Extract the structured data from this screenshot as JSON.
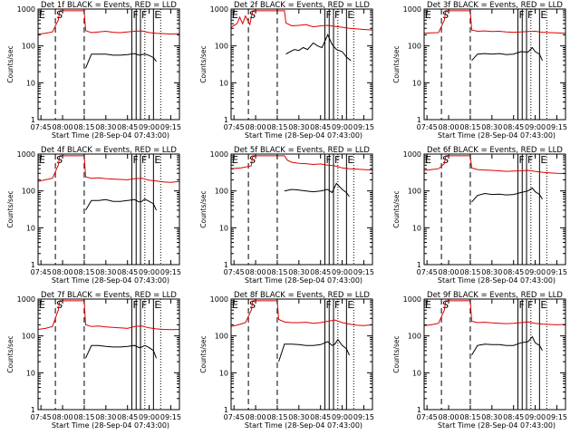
{
  "chart_data": [
    {
      "type": "line",
      "title": "Det 1f BLACK = Events, RED = LLD",
      "xlabel": "Start Time (28-Sep-04 07:43:00)",
      "ylabel": "Counts/sec",
      "yscale": "log",
      "ylim": [
        1,
        1000
      ],
      "xlim": [
        "07:43",
        "09:21"
      ],
      "series": [
        {
          "color": "#000000",
          "t": [
            "08:16",
            "08:20",
            "08:25",
            "08:30",
            "08:35",
            "08:40",
            "08:45",
            "08:50",
            "08:53",
            "08:55",
            "08:57",
            "09:00",
            "09:03",
            "09:05"
          ],
          "v": [
            25,
            60,
            60,
            60,
            56,
            56,
            58,
            62,
            56,
            58,
            60,
            55,
            48,
            38
          ]
        },
        {
          "color": "#dd0000",
          "t": [
            "07:43",
            "07:48",
            "07:53",
            "07:57",
            "07:58",
            "08:15",
            "08:16",
            "08:20",
            "08:25",
            "08:30",
            "08:35",
            "08:40",
            "08:45",
            "08:50",
            "08:55",
            "09:00",
            "09:05",
            "09:10",
            "09:15",
            "09:21"
          ],
          "v": [
            210,
            220,
            240,
            500,
            900,
            900,
            260,
            230,
            240,
            250,
            235,
            230,
            240,
            250,
            255,
            230,
            220,
            215,
            210,
            215
          ]
        }
      ]
    },
    {
      "type": "line",
      "title": "Det 2f BLACK = Events, RED = LLD",
      "xlabel": "Start Time (28-Sep-04 07:43:00)",
      "ylabel": "Counts/sec",
      "yscale": "log",
      "ylim": [
        1,
        1000
      ],
      "xlim": [
        "07:43",
        "09:21"
      ],
      "series": [
        {
          "color": "#000000",
          "t": [
            "08:21",
            "08:24",
            "08:27",
            "08:30",
            "08:33",
            "08:36",
            "08:40",
            "08:43",
            "08:46",
            "08:50",
            "08:53",
            "08:56",
            "09:00",
            "09:03",
            "09:06"
          ],
          "v": [
            60,
            70,
            80,
            75,
            90,
            80,
            120,
            100,
            90,
            200,
            110,
            80,
            70,
            50,
            40
          ]
        },
        {
          "color": "#dd0000",
          "t": [
            "07:43",
            "07:47",
            "07:49",
            "07:51",
            "07:53",
            "07:56",
            "07:58",
            "08:20",
            "08:21",
            "08:25",
            "08:30",
            "08:35",
            "08:40",
            "08:45",
            "08:50",
            "08:55",
            "09:00",
            "09:05",
            "09:10",
            "09:15",
            "09:21"
          ],
          "v": [
            320,
            400,
            600,
            400,
            650,
            380,
            900,
            900,
            420,
            350,
            360,
            380,
            330,
            350,
            360,
            340,
            320,
            300,
            290,
            280,
            270
          ]
        }
      ]
    },
    {
      "type": "line",
      "title": "Det 3f BLACK = Events, RED = LLD",
      "xlabel": "Start Time (28-Sep-04 07:43:00)",
      "ylabel": "Counts/sec",
      "yscale": "log",
      "ylim": [
        1,
        1000
      ],
      "xlim": [
        "07:43",
        "09:21"
      ],
      "series": [
        {
          "color": "#000000",
          "t": [
            "08:16",
            "08:20",
            "08:25",
            "08:30",
            "08:35",
            "08:40",
            "08:45",
            "08:50",
            "08:55",
            "08:58",
            "09:00",
            "09:03",
            "09:05"
          ],
          "v": [
            40,
            60,
            62,
            60,
            62,
            58,
            60,
            70,
            68,
            90,
            70,
            60,
            40
          ]
        },
        {
          "color": "#dd0000",
          "t": [
            "07:43",
            "07:48",
            "07:53",
            "07:57",
            "07:58",
            "08:15",
            "08:16",
            "08:20",
            "08:25",
            "08:30",
            "08:35",
            "08:40",
            "08:45",
            "08:50",
            "08:55",
            "09:00",
            "09:05",
            "09:10",
            "09:15",
            "09:21"
          ],
          "v": [
            220,
            225,
            230,
            500,
            900,
            900,
            270,
            250,
            255,
            245,
            250,
            240,
            235,
            240,
            245,
            250,
            235,
            230,
            225,
            220
          ]
        }
      ]
    },
    {
      "type": "line",
      "title": "Det 4f BLACK = Events, RED = LLD",
      "xlabel": "Start Time (28-Sep-04 07:43:00)",
      "ylabel": "Counts/sec",
      "yscale": "log",
      "ylim": [
        1,
        1000
      ],
      "xlim": [
        "07:43",
        "09:21"
      ],
      "series": [
        {
          "color": "#000000",
          "t": [
            "08:16",
            "08:20",
            "08:25",
            "08:30",
            "08:35",
            "08:40",
            "08:45",
            "08:50",
            "08:53",
            "08:55",
            "08:57",
            "09:00",
            "09:03",
            "09:05"
          ],
          "v": [
            30,
            55,
            55,
            58,
            52,
            52,
            55,
            58,
            50,
            52,
            60,
            52,
            45,
            30
          ]
        },
        {
          "color": "#dd0000",
          "t": [
            "07:43",
            "07:48",
            "07:53",
            "07:57",
            "07:58",
            "08:15",
            "08:16",
            "08:20",
            "08:25",
            "08:30",
            "08:35",
            "08:40",
            "08:45",
            "08:50",
            "08:55",
            "09:00",
            "09:05",
            "09:10",
            "09:15",
            "09:21"
          ],
          "v": [
            180,
            200,
            220,
            500,
            900,
            900,
            240,
            220,
            225,
            215,
            210,
            205,
            200,
            215,
            220,
            195,
            185,
            175,
            170,
            180
          ]
        }
      ]
    },
    {
      "type": "line",
      "title": "Det 5f BLACK = Events, RED = LLD",
      "xlabel": "Start Time (28-Sep-04 07:43:00)",
      "ylabel": "Counts/sec",
      "yscale": "log",
      "ylim": [
        1,
        1000
      ],
      "xlim": [
        "07:43",
        "09:21"
      ],
      "series": [
        {
          "color": "#000000",
          "t": [
            "08:20",
            "08:25",
            "08:30",
            "08:35",
            "08:40",
            "08:45",
            "08:50",
            "08:53",
            "08:56",
            "09:00",
            "09:03",
            "09:05"
          ],
          "v": [
            100,
            110,
            105,
            100,
            95,
            100,
            110,
            90,
            160,
            110,
            90,
            70
          ]
        },
        {
          "color": "#dd0000",
          "t": [
            "07:43",
            "07:50",
            "07:57",
            "07:58",
            "08:20",
            "08:22",
            "08:25",
            "08:30",
            "08:35",
            "08:40",
            "08:45",
            "08:50",
            "08:55",
            "09:00",
            "09:05",
            "09:10",
            "09:15",
            "09:21"
          ],
          "v": [
            400,
            420,
            480,
            900,
            900,
            680,
            600,
            560,
            550,
            520,
            540,
            500,
            480,
            420,
            400,
            390,
            380,
            370
          ]
        }
      ]
    },
    {
      "type": "line",
      "title": "Det 6f BLACK = Events, RED = LLD",
      "xlabel": "Start Time (28-Sep-04 07:43:00)",
      "ylabel": "Counts/sec",
      "yscale": "log",
      "ylim": [
        1,
        1000
      ],
      "xlim": [
        "07:43",
        "09:21"
      ],
      "series": [
        {
          "color": "#000000",
          "t": [
            "08:16",
            "08:20",
            "08:25",
            "08:30",
            "08:35",
            "08:40",
            "08:45",
            "08:50",
            "08:55",
            "08:58",
            "09:00",
            "09:03",
            "09:05"
          ],
          "v": [
            50,
            75,
            85,
            80,
            82,
            78,
            80,
            90,
            100,
            120,
            95,
            80,
            60
          ]
        },
        {
          "color": "#dd0000",
          "t": [
            "07:43",
            "07:48",
            "07:53",
            "07:57",
            "07:58",
            "08:15",
            "08:16",
            "08:20",
            "08:25",
            "08:30",
            "08:35",
            "08:40",
            "08:45",
            "08:50",
            "08:55",
            "09:00",
            "09:05",
            "09:10",
            "09:15",
            "09:21"
          ],
          "v": [
            360,
            380,
            400,
            550,
            900,
            900,
            420,
            380,
            370,
            360,
            350,
            340,
            345,
            350,
            360,
            340,
            320,
            310,
            300,
            295
          ]
        }
      ]
    },
    {
      "type": "line",
      "title": "Det 7f BLACK = Events, RED = LLD",
      "xlabel": "Start Time (28-Sep-04 07:43:00)",
      "ylabel": "Counts/sec",
      "yscale": "log",
      "ylim": [
        1,
        1000
      ],
      "xlim": [
        "07:43",
        "09:21"
      ],
      "series": [
        {
          "color": "#000000",
          "t": [
            "08:16",
            "08:20",
            "08:25",
            "08:30",
            "08:35",
            "08:40",
            "08:45",
            "08:50",
            "08:53",
            "08:55",
            "08:57",
            "09:00",
            "09:03",
            "09:05"
          ],
          "v": [
            25,
            55,
            55,
            52,
            50,
            50,
            52,
            55,
            48,
            50,
            55,
            48,
            40,
            25
          ]
        },
        {
          "color": "#dd0000",
          "t": [
            "07:43",
            "07:48",
            "07:53",
            "07:57",
            "07:58",
            "08:15",
            "08:16",
            "08:20",
            "08:25",
            "08:30",
            "08:35",
            "08:40",
            "08:45",
            "08:50",
            "08:55",
            "09:00",
            "09:05",
            "09:10",
            "09:15",
            "09:21"
          ],
          "v": [
            150,
            160,
            180,
            500,
            900,
            900,
            200,
            180,
            185,
            175,
            170,
            165,
            160,
            180,
            185,
            165,
            155,
            150,
            148,
            150
          ]
        }
      ]
    },
    {
      "type": "line",
      "title": "Det 8f BLACK = Events, RED = LLD",
      "xlabel": "Start Time (28-Sep-04 07:43:00)",
      "ylabel": "Counts/sec",
      "yscale": "log",
      "ylim": [
        1,
        1000
      ],
      "xlim": [
        "07:43",
        "09:21"
      ],
      "series": [
        {
          "color": "#000000",
          "t": [
            "08:16",
            "08:20",
            "08:25",
            "08:30",
            "08:35",
            "08:40",
            "08:45",
            "08:50",
            "08:53",
            "08:55",
            "08:57",
            "09:00",
            "09:03",
            "09:05"
          ],
          "v": [
            20,
            60,
            60,
            58,
            55,
            55,
            58,
            70,
            55,
            60,
            80,
            55,
            45,
            30
          ]
        },
        {
          "color": "#dd0000",
          "t": [
            "07:43",
            "07:48",
            "07:53",
            "07:57",
            "07:58",
            "08:15",
            "08:16",
            "08:20",
            "08:25",
            "08:30",
            "08:35",
            "08:40",
            "08:45",
            "08:50",
            "08:55",
            "09:00",
            "09:05",
            "09:10",
            "09:15",
            "09:21"
          ],
          "v": [
            180,
            200,
            230,
            500,
            900,
            900,
            280,
            240,
            230,
            230,
            235,
            220,
            230,
            250,
            270,
            230,
            210,
            195,
            190,
            200
          ]
        }
      ]
    },
    {
      "type": "line",
      "title": "Det 9f BLACK = Events, RED = LLD",
      "xlabel": "Start Time (28-Sep-04 07:43:00)",
      "ylabel": "Counts/sec",
      "yscale": "log",
      "ylim": [
        1,
        1000
      ],
      "xlim": [
        "07:43",
        "09:21"
      ],
      "series": [
        {
          "color": "#000000",
          "t": [
            "08:16",
            "08:20",
            "08:25",
            "08:30",
            "08:35",
            "08:40",
            "08:45",
            "08:50",
            "08:55",
            "08:58",
            "09:00",
            "09:03",
            "09:05"
          ],
          "v": [
            30,
            55,
            60,
            58,
            58,
            55,
            55,
            65,
            70,
            95,
            65,
            55,
            40
          ]
        },
        {
          "color": "#dd0000",
          "t": [
            "07:43",
            "07:48",
            "07:53",
            "07:57",
            "07:58",
            "08:15",
            "08:16",
            "08:20",
            "08:25",
            "08:30",
            "08:35",
            "08:40",
            "08:45",
            "08:50",
            "08:55",
            "09:00",
            "09:05",
            "09:10",
            "09:15",
            "09:21"
          ],
          "v": [
            190,
            200,
            220,
            500,
            900,
            900,
            250,
            230,
            235,
            225,
            220,
            215,
            220,
            230,
            240,
            220,
            210,
            205,
            200,
            205
          ]
        }
      ]
    }
  ],
  "axes": {
    "y_ticks": [
      {
        "label": "1",
        "value": 1
      },
      {
        "label": "10",
        "value": 10
      },
      {
        "label": "100",
        "value": 100
      },
      {
        "label": "1000",
        "value": 1000
      }
    ],
    "x_ticks": [
      "07:45",
      "08:00",
      "08:15",
      "08:30",
      "08:45",
      "09:00",
      "09:15"
    ]
  },
  "markers": [
    {
      "label": "E",
      "time": "07:43",
      "style": "solid"
    },
    {
      "label": "S",
      "time": "07:55",
      "style": "dash"
    },
    {
      "label": "",
      "time": "08:15",
      "style": "dash"
    },
    {
      "label": "F",
      "time": "08:48",
      "style": "solid"
    },
    {
      "label": "",
      "time": "08:51",
      "style": "solid"
    },
    {
      "label": "F",
      "time": "08:54",
      "style": "solid"
    },
    {
      "label": "",
      "time": "08:57",
      "style": "dot"
    },
    {
      "label": "E",
      "time": "09:03",
      "style": "solid"
    },
    {
      "label": "",
      "time": "09:08",
      "style": "dot"
    }
  ],
  "colors": {
    "events": "#000000",
    "lld": "#dd0000",
    "axis": "#000000",
    "background": "#ffffff"
  }
}
